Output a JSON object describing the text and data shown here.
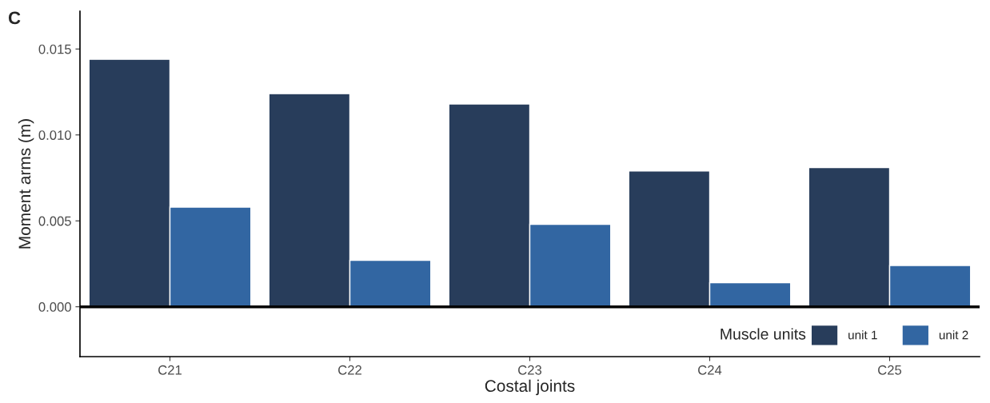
{
  "chart_data": {
    "type": "bar",
    "xlabel": "Costal joints",
    "ylabel": "Moment arms (m)",
    "legend_title": "Muscle units",
    "categories": [
      "C21",
      "C22",
      "C23",
      "C24",
      "C25"
    ],
    "series": [
      {
        "name": "unit 1",
        "color": "#283d5b",
        "values": [
          0.0144,
          0.0124,
          0.0118,
          0.0079,
          0.0081
        ]
      },
      {
        "name": "unit 2",
        "color": "#3266a2",
        "values": [
          0.0058,
          0.0027,
          0.0048,
          0.0014,
          0.0024
        ]
      }
    ],
    "ylim": [
      -0.0029,
      0.0172
    ],
    "yticks": [
      {
        "value": 0,
        "label": "0.000"
      },
      {
        "value": 0.005,
        "label": "0.005"
      },
      {
        "value": 0.01,
        "label": "0.010"
      },
      {
        "value": 0.015,
        "label": "0.015"
      }
    ],
    "ref_lines": [
      {
        "axis": "y",
        "value": 0,
        "color": "#000000"
      }
    ],
    "annotations": [
      "C"
    ],
    "grid": false,
    "legend": "bottom right"
  }
}
